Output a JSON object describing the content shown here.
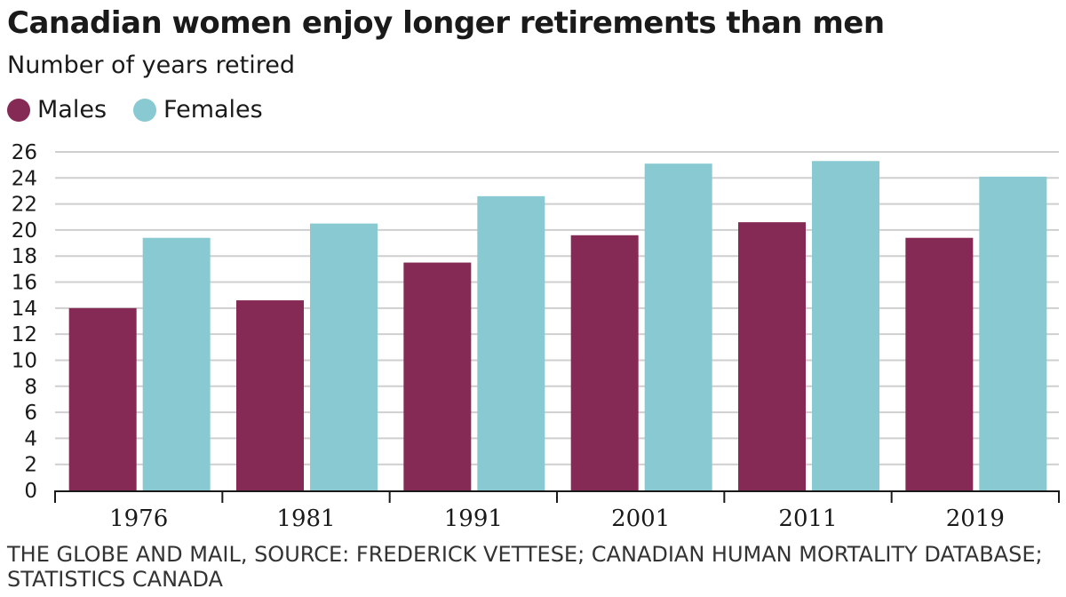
{
  "header": {
    "title": "Canadian women enjoy longer retirements than men",
    "subtitle": "Number of years retired"
  },
  "legend": {
    "items": [
      {
        "label": "Males",
        "color": "#852a55"
      },
      {
        "label": "Females",
        "color": "#89c9d2"
      }
    ]
  },
  "footer": {
    "source": "THE GLOBE AND MAIL, SOURCE: FREDERICK VETTESE; CANADIAN HUMAN MORTALITY DATABASE; STATISTICS CANADA"
  },
  "chart_data": {
    "type": "bar",
    "title": "Canadian women enjoy longer retirements than men",
    "subtitle": "Number of years retired",
    "categories": [
      "1976",
      "1981",
      "1991",
      "2001",
      "2011",
      "2019"
    ],
    "series": [
      {
        "name": "Males",
        "color": "#852a55",
        "values": [
          14.0,
          14.6,
          17.5,
          19.6,
          20.6,
          19.4
        ]
      },
      {
        "name": "Females",
        "color": "#89c9d2",
        "values": [
          19.4,
          20.5,
          22.6,
          25.1,
          25.3,
          24.1
        ]
      }
    ],
    "ylim": [
      0,
      26
    ],
    "yticks": [
      0,
      2,
      4,
      6,
      8,
      10,
      12,
      14,
      16,
      18,
      20,
      22,
      24,
      26
    ],
    "grid": true,
    "legend_position": "top-left"
  }
}
